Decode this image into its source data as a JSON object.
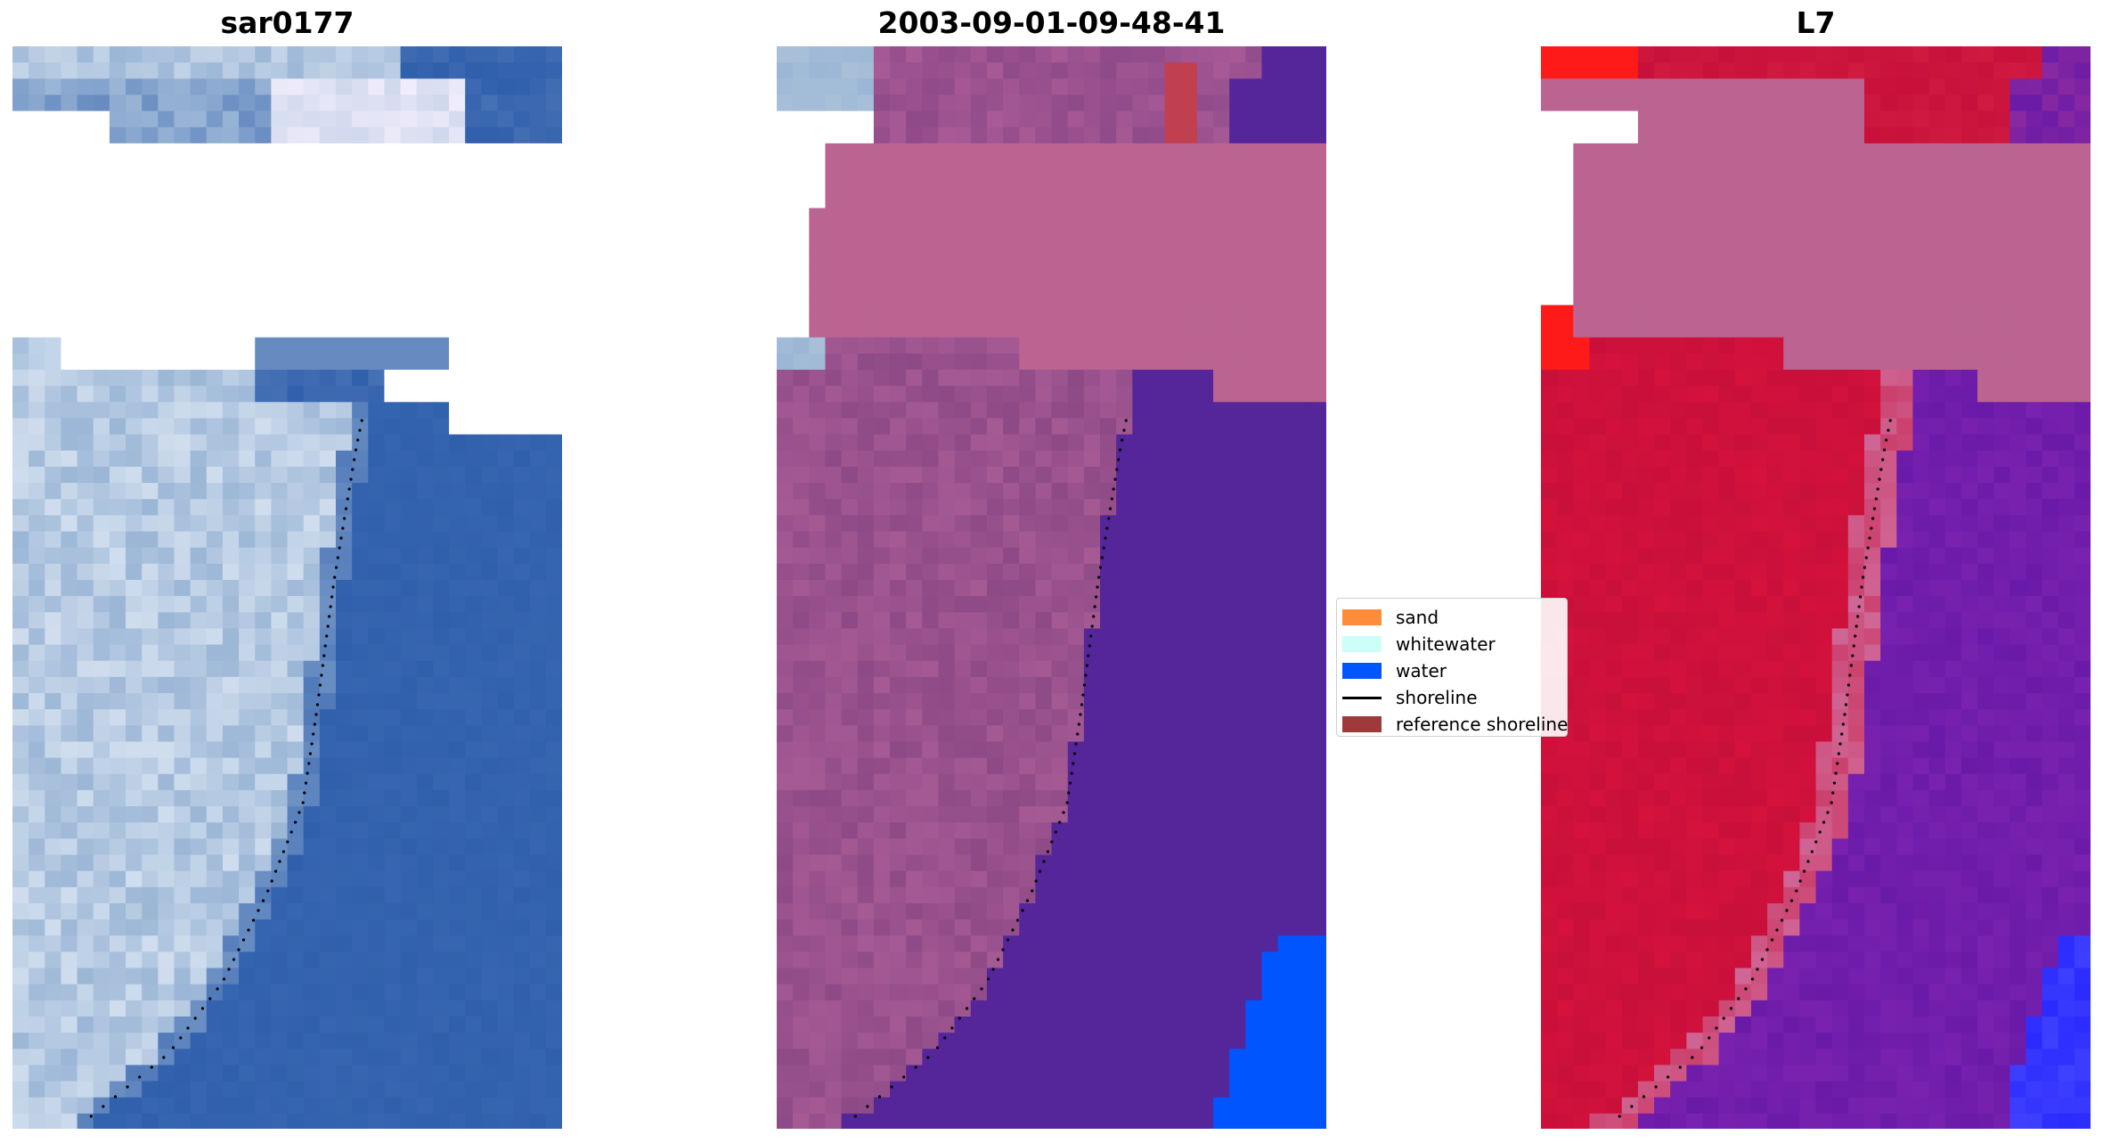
{
  "panels": [
    {
      "title": "sar0177",
      "kind": "rgb"
    },
    {
      "title": "2003-09-01-09-48-41",
      "kind": "classified"
    },
    {
      "title": "L7",
      "kind": "index"
    }
  ],
  "legend": {
    "items": [
      {
        "label": "sand",
        "type": "patch",
        "color": "#ff8c3a"
      },
      {
        "label": "whitewater",
        "type": "patch",
        "color": "#ccfff8"
      },
      {
        "label": "water",
        "type": "patch",
        "color": "#0055ff"
      },
      {
        "label": "shoreline",
        "type": "line",
        "color": "#000000"
      },
      {
        "label": "reference shoreline",
        "type": "patch",
        "color": "#9e3a3a"
      }
    ]
  },
  "colors": {
    "cloud_mask": "#bb6492",
    "water_class": "#55269a",
    "water_bright": "#0055ff",
    "land_rgb": "#9bb6d6",
    "water_rgb": "#305fac",
    "index_high": "#c8103a",
    "index_low": "#6a1aa8",
    "index_bright_red": "#ff1a1a",
    "index_bright_blue": "#2a2aff",
    "shoreline_dots": "#000000"
  }
}
